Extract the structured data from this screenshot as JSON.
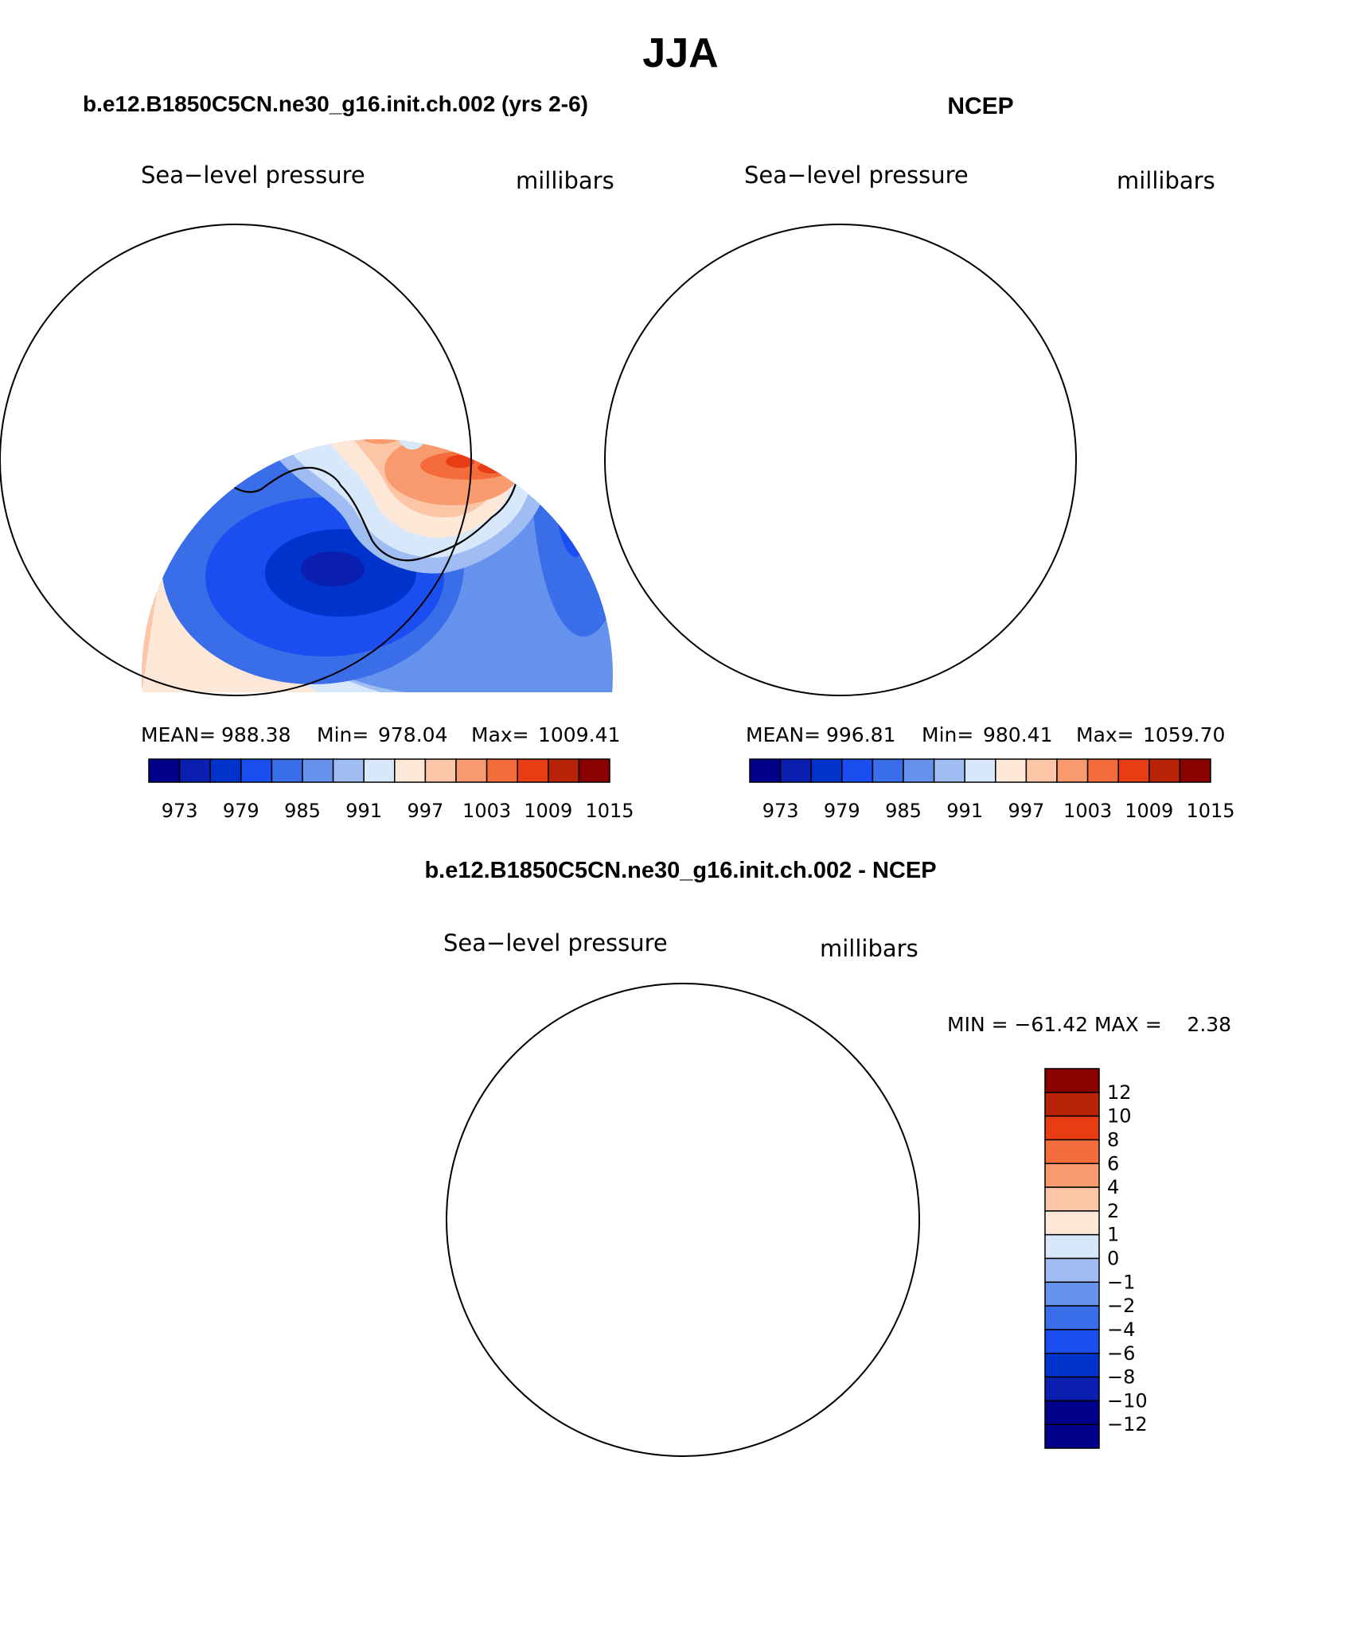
{
  "title": "JJA",
  "panels": {
    "model": {
      "header": "b.e12.B1850C5CN.ne30_g16.init.ch.002 (yrs 2-6)",
      "left_label": "Sea−level pressure",
      "right_label": "millibars",
      "stats": {
        "mean_label": "MEAN=",
        "mean": "988.38",
        "min_label": "Min=",
        "min": "978.04",
        "max_label": "Max=",
        "max": "1009.41"
      }
    },
    "obs": {
      "header": "NCEP",
      "left_label": "Sea−level pressure",
      "right_label": "millibars",
      "stats": {
        "mean_label": "MEAN=",
        "mean": "996.81",
        "min_label": "Min=",
        "min": "980.41",
        "max_label": "Max=",
        "max": "1059.70"
      }
    },
    "diff": {
      "header": "b.e12.B1850C5CN.ne30_g16.init.ch.002 - NCEP",
      "left_label": "Sea−level pressure",
      "right_label": "millibars",
      "minmax": "MIN = −61.42 MAX =    2.38"
    }
  },
  "colorbars": {
    "abs": {
      "colors": [
        "#00008b",
        "#0a1fb0",
        "#0033cc",
        "#1a4ef0",
        "#3a6ee8",
        "#6592ec",
        "#9fbdf2",
        "#d8e8fb",
        "#fde8d8",
        "#fbc5a6",
        "#f89a6e",
        "#f56c3c",
        "#e83d14",
        "#b82206",
        "#8b0000"
      ],
      "tick_labels": [
        "973",
        "979",
        "985",
        "991",
        "997",
        "1003",
        "1009",
        "1015"
      ]
    },
    "diff": {
      "colors": [
        "#00008b",
        "#0a1fb0",
        "#0033cc",
        "#1a4ef0",
        "#3a6ee8",
        "#6592ec",
        "#9fbdf2",
        "#d8e8fb",
        "#fde8d8",
        "#fbc5a6",
        "#f89a6e",
        "#f56c3c",
        "#e83d14",
        "#b82206",
        "#8b0000"
      ],
      "tick_labels": [
        "12",
        "10",
        "8",
        "6",
        "4",
        "2",
        "1",
        "0",
        "−1",
        "−2",
        "−4",
        "−6",
        "−8",
        "−10",
        "−12"
      ]
    }
  },
  "colors": {
    "deep_blue": "#00008b",
    "mid_blue": "#3a6ee8",
    "light_blue": "#9fbdf2",
    "pale_blue": "#d8e8fb",
    "pale_red": "#fde8d8",
    "salmon": "#f89a6e",
    "orange": "#f56c3c",
    "dark_red": "#8b0000",
    "coast": "#000000"
  }
}
